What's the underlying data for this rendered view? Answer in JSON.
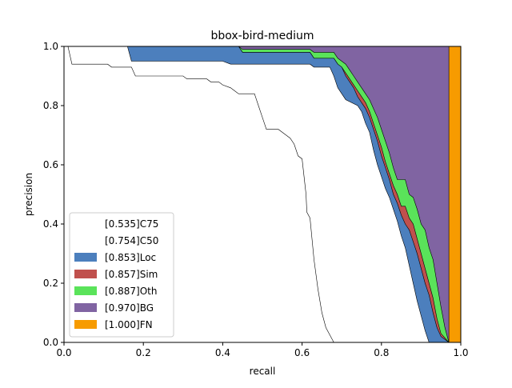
{
  "chart_data": {
    "type": "area",
    "title": "bbox-bird-medium",
    "xlabel": "recall",
    "ylabel": "precision",
    "xlim": [
      0.0,
      1.0
    ],
    "ylim": [
      0.0,
      1.0
    ],
    "x_ticks": [
      "0.0",
      "0.2",
      "0.4",
      "0.6",
      "0.8",
      "1.0"
    ],
    "y_ticks": [
      "0.0",
      "0.2",
      "0.4",
      "0.6",
      "0.8",
      "1.0"
    ],
    "grid": false,
    "legend_position": "lower-left",
    "legend": [
      {
        "label": "[0.535]C75",
        "color": "#ffffff"
      },
      {
        "label": "[0.754]C50",
        "color": "#ffffff"
      },
      {
        "label": "[0.853]Loc",
        "color": "#4c7fbd"
      },
      {
        "label": "[0.857]Sim",
        "color": "#c0504d"
      },
      {
        "label": "[0.887]Oth",
        "color": "#5ae35a"
      },
      {
        "label": "[0.970]BG",
        "color": "#8064a2"
      },
      {
        "label": "[1.000]FN",
        "color": "#f79b00"
      }
    ],
    "series": [
      {
        "name": "[0.535]C75",
        "color": "#ffffff",
        "points": [
          [
            0.0,
            1.0
          ],
          [
            0.01,
            1.0
          ],
          [
            0.02,
            0.94
          ],
          [
            0.11,
            0.94
          ],
          [
            0.12,
            0.93
          ],
          [
            0.17,
            0.93
          ],
          [
            0.18,
            0.9
          ],
          [
            0.3,
            0.9
          ],
          [
            0.31,
            0.89
          ],
          [
            0.36,
            0.89
          ],
          [
            0.37,
            0.88
          ],
          [
            0.39,
            0.88
          ],
          [
            0.4,
            0.87
          ],
          [
            0.42,
            0.86
          ],
          [
            0.43,
            0.85
          ],
          [
            0.44,
            0.84
          ],
          [
            0.48,
            0.84
          ],
          [
            0.49,
            0.8
          ],
          [
            0.5,
            0.76
          ],
          [
            0.51,
            0.72
          ],
          [
            0.54,
            0.72
          ],
          [
            0.56,
            0.7
          ],
          [
            0.57,
            0.69
          ],
          [
            0.58,
            0.67
          ],
          [
            0.59,
            0.63
          ],
          [
            0.6,
            0.62
          ],
          [
            0.61,
            0.5
          ],
          [
            0.612,
            0.44
          ],
          [
            0.62,
            0.42
          ],
          [
            0.63,
            0.28
          ],
          [
            0.64,
            0.18
          ],
          [
            0.65,
            0.1
          ],
          [
            0.66,
            0.05
          ],
          [
            0.68,
            0.0
          ]
        ]
      },
      {
        "name": "[0.754]C50",
        "color": "#ffffff",
        "points": [
          [
            0.0,
            1.0
          ],
          [
            0.16,
            1.0
          ],
          [
            0.17,
            0.95
          ],
          [
            0.4,
            0.95
          ],
          [
            0.42,
            0.94
          ],
          [
            0.62,
            0.94
          ],
          [
            0.63,
            0.93
          ],
          [
            0.67,
            0.93
          ],
          [
            0.68,
            0.9
          ],
          [
            0.69,
            0.86
          ],
          [
            0.7,
            0.84
          ],
          [
            0.71,
            0.82
          ],
          [
            0.74,
            0.8
          ],
          [
            0.75,
            0.78
          ],
          [
            0.76,
            0.74
          ],
          [
            0.77,
            0.71
          ],
          [
            0.78,
            0.65
          ],
          [
            0.79,
            0.6
          ],
          [
            0.8,
            0.56
          ],
          [
            0.81,
            0.52
          ],
          [
            0.82,
            0.49
          ],
          [
            0.83,
            0.45
          ],
          [
            0.84,
            0.41
          ],
          [
            0.85,
            0.36
          ],
          [
            0.86,
            0.32
          ],
          [
            0.87,
            0.26
          ],
          [
            0.88,
            0.2
          ],
          [
            0.89,
            0.14
          ],
          [
            0.9,
            0.09
          ],
          [
            0.91,
            0.04
          ],
          [
            0.92,
            0.0
          ]
        ]
      },
      {
        "name": "[0.853]Loc",
        "color": "#4c7fbd",
        "points": [
          [
            0.0,
            1.0
          ],
          [
            0.44,
            1.0
          ],
          [
            0.45,
            0.98
          ],
          [
            0.62,
            0.98
          ],
          [
            0.63,
            0.96
          ],
          [
            0.68,
            0.96
          ],
          [
            0.69,
            0.94
          ],
          [
            0.7,
            0.93
          ],
          [
            0.71,
            0.9
          ],
          [
            0.72,
            0.88
          ],
          [
            0.73,
            0.86
          ],
          [
            0.74,
            0.83
          ],
          [
            0.75,
            0.81
          ],
          [
            0.76,
            0.79
          ],
          [
            0.77,
            0.76
          ],
          [
            0.78,
            0.72
          ],
          [
            0.79,
            0.68
          ],
          [
            0.8,
            0.63
          ],
          [
            0.81,
            0.59
          ],
          [
            0.82,
            0.55
          ],
          [
            0.83,
            0.5
          ],
          [
            0.84,
            0.47
          ],
          [
            0.85,
            0.43
          ],
          [
            0.86,
            0.4
          ],
          [
            0.87,
            0.38
          ],
          [
            0.88,
            0.34
          ],
          [
            0.89,
            0.3
          ],
          [
            0.9,
            0.25
          ],
          [
            0.91,
            0.2
          ],
          [
            0.92,
            0.16
          ],
          [
            0.93,
            0.1
          ],
          [
            0.94,
            0.05
          ],
          [
            0.95,
            0.02
          ],
          [
            0.97,
            0.0
          ]
        ]
      },
      {
        "name": "[0.857]Sim",
        "color": "#c0504d",
        "points": [
          [
            0.0,
            1.0
          ],
          [
            0.44,
            1.0
          ],
          [
            0.45,
            0.98
          ],
          [
            0.62,
            0.98
          ],
          [
            0.63,
            0.96
          ],
          [
            0.68,
            0.96
          ],
          [
            0.69,
            0.94
          ],
          [
            0.7,
            0.93
          ],
          [
            0.71,
            0.91
          ],
          [
            0.72,
            0.89
          ],
          [
            0.73,
            0.87
          ],
          [
            0.74,
            0.85
          ],
          [
            0.75,
            0.83
          ],
          [
            0.76,
            0.81
          ],
          [
            0.77,
            0.78
          ],
          [
            0.78,
            0.74
          ],
          [
            0.79,
            0.7
          ],
          [
            0.8,
            0.66
          ],
          [
            0.81,
            0.61
          ],
          [
            0.82,
            0.57
          ],
          [
            0.83,
            0.53
          ],
          [
            0.84,
            0.5
          ],
          [
            0.85,
            0.46
          ],
          [
            0.86,
            0.46
          ],
          [
            0.87,
            0.42
          ],
          [
            0.88,
            0.4
          ],
          [
            0.89,
            0.35
          ],
          [
            0.9,
            0.3
          ],
          [
            0.91,
            0.25
          ],
          [
            0.92,
            0.2
          ],
          [
            0.93,
            0.15
          ],
          [
            0.94,
            0.08
          ],
          [
            0.95,
            0.03
          ],
          [
            0.97,
            0.0
          ]
        ]
      },
      {
        "name": "[0.887]Oth",
        "color": "#5ae35a",
        "points": [
          [
            0.0,
            1.0
          ],
          [
            0.44,
            1.0
          ],
          [
            0.45,
            0.99
          ],
          [
            0.62,
            0.99
          ],
          [
            0.63,
            0.98
          ],
          [
            0.68,
            0.98
          ],
          [
            0.69,
            0.96
          ],
          [
            0.7,
            0.95
          ],
          [
            0.71,
            0.94
          ],
          [
            0.72,
            0.92
          ],
          [
            0.73,
            0.9
          ],
          [
            0.74,
            0.88
          ],
          [
            0.75,
            0.86
          ],
          [
            0.76,
            0.84
          ],
          [
            0.77,
            0.82
          ],
          [
            0.78,
            0.79
          ],
          [
            0.79,
            0.76
          ],
          [
            0.8,
            0.72
          ],
          [
            0.81,
            0.68
          ],
          [
            0.82,
            0.64
          ],
          [
            0.83,
            0.59
          ],
          [
            0.84,
            0.55
          ],
          [
            0.85,
            0.55
          ],
          [
            0.86,
            0.55
          ],
          [
            0.87,
            0.5
          ],
          [
            0.88,
            0.49
          ],
          [
            0.89,
            0.45
          ],
          [
            0.9,
            0.4
          ],
          [
            0.91,
            0.38
          ],
          [
            0.92,
            0.32
          ],
          [
            0.93,
            0.28
          ],
          [
            0.94,
            0.2
          ],
          [
            0.95,
            0.12
          ],
          [
            0.96,
            0.05
          ],
          [
            0.97,
            0.0
          ]
        ]
      },
      {
        "name": "[0.970]BG",
        "color": "#8064a2",
        "points": [
          [
            0.0,
            1.0
          ],
          [
            0.97,
            1.0
          ],
          [
            0.97,
            0.0
          ]
        ]
      },
      {
        "name": "[1.000]FN",
        "color": "#f79b00",
        "points": [
          [
            0.0,
            1.0
          ],
          [
            1.0,
            1.0
          ],
          [
            1.0,
            0.0
          ]
        ]
      }
    ]
  }
}
